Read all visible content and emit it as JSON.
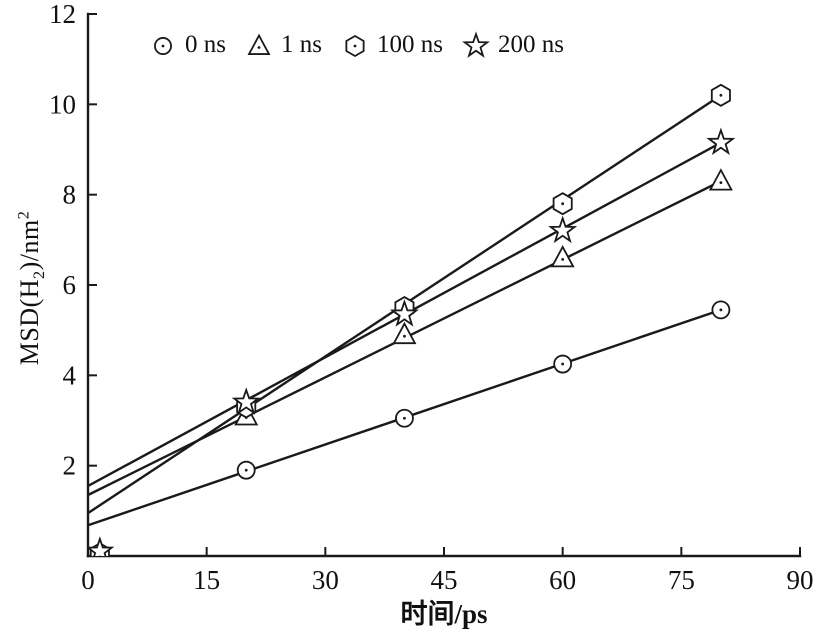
{
  "chart_data": {
    "type": "line",
    "title": "",
    "xlabel": "时间/ps",
    "ylabel": "MSD(H2)/nm2",
    "xlim": [
      0,
      90
    ],
    "ylim": [
      0,
      12
    ],
    "xticks": [
      0,
      15,
      30,
      45,
      60,
      75,
      90
    ],
    "yticks": [
      2,
      4,
      6,
      8,
      10,
      12
    ],
    "grid": false,
    "legend_position": "top-inside",
    "line_color": "#1a1a1a",
    "series": [
      {
        "name": "0 ns",
        "marker": "circle",
        "points": {
          "x": [
            1.5,
            20,
            40,
            60,
            80
          ],
          "y": [
            0.05,
            1.9,
            3.05,
            4.25,
            5.45
          ]
        },
        "fit_line": {
          "x": [
            0,
            80
          ],
          "y": [
            0.68,
            5.45
          ]
        }
      },
      {
        "name": "1 ns",
        "marker": "triangle",
        "points": {
          "x": [
            1.5,
            20,
            40,
            60,
            80
          ],
          "y": [
            0.05,
            3.1,
            4.9,
            6.6,
            8.3
          ]
        },
        "fit_line": {
          "x": [
            0,
            80
          ],
          "y": [
            1.35,
            8.3
          ]
        }
      },
      {
        "name": "100 ns",
        "marker": "hexagon",
        "points": {
          "x": [
            1.5,
            20,
            40,
            60,
            80
          ],
          "y": [
            0.05,
            3.3,
            5.5,
            7.8,
            10.2
          ]
        },
        "fit_line": {
          "x": [
            0,
            80
          ],
          "y": [
            0.95,
            10.2
          ]
        }
      },
      {
        "name": "200 ns",
        "marker": "star",
        "points": {
          "x": [
            1.5,
            20,
            40,
            60,
            80
          ],
          "y": [
            0.1,
            3.4,
            5.35,
            7.2,
            9.15
          ]
        },
        "fit_line": {
          "x": [
            0,
            80
          ],
          "y": [
            1.55,
            9.15
          ]
        }
      }
    ]
  },
  "axes": {
    "x_label": "时间/ps",
    "y_label": {
      "pre": "MSD(H",
      "sub": "2",
      "mid": ")/nm",
      "sup": "2"
    }
  }
}
